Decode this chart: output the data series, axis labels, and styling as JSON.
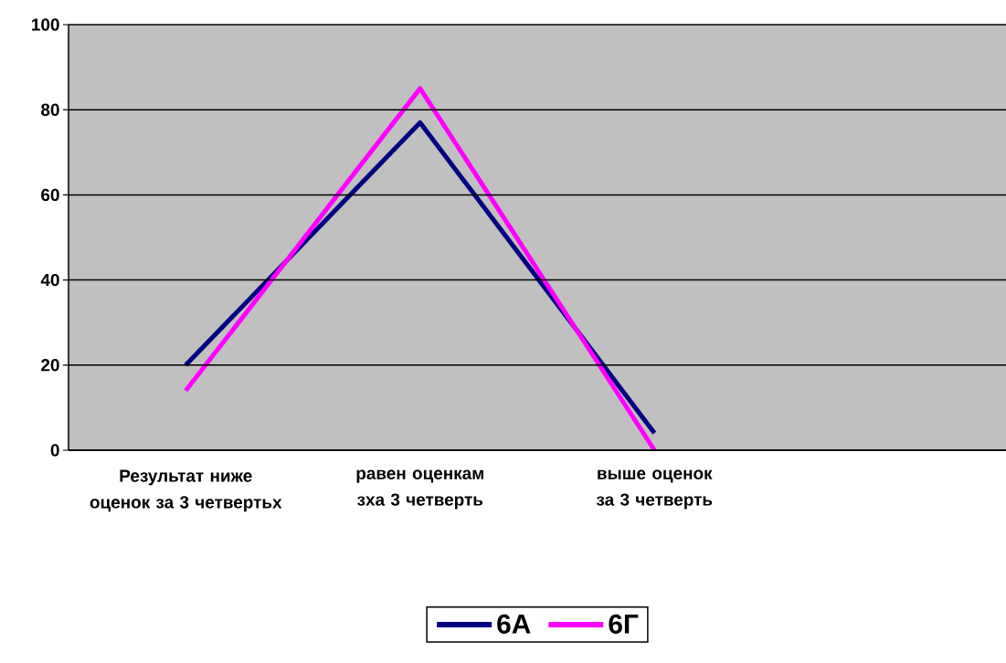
{
  "chart_data": {
    "type": "line",
    "categories": [
      "Результат ниже оценок за 3 четвертьх",
      "равен оценкам зха 3 четверть",
      "выше оценок за 3 четверть",
      null
    ],
    "series": [
      {
        "name": "6А",
        "color": "#000080",
        "values": [
          20,
          77,
          4,
          null
        ]
      },
      {
        "name": "6Г",
        "color": "#ff00ff",
        "values": [
          14,
          85,
          0,
          null
        ]
      }
    ],
    "ylim": [
      0,
      100
    ],
    "yticks": [
      0,
      20,
      40,
      60,
      80,
      100
    ],
    "grid": "y",
    "legend": "bottom",
    "marker": "none",
    "line_style": "solid"
  }
}
